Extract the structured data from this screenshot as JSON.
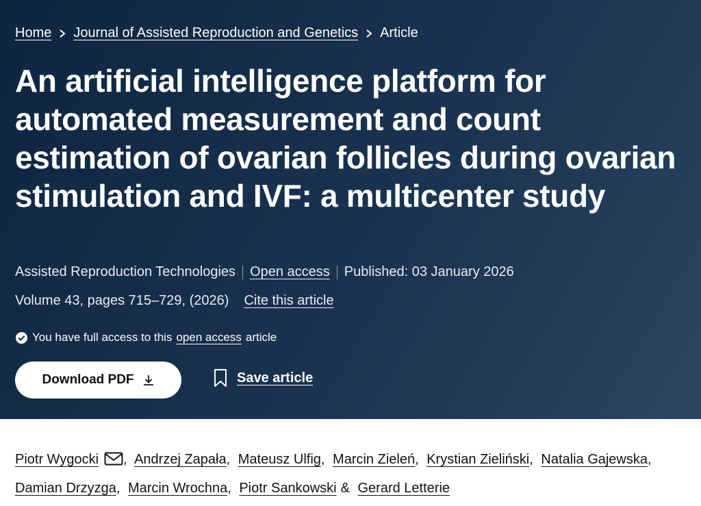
{
  "breadcrumbs": [
    "Home",
    "Journal of Assisted Reproduction and Genetics",
    "Article"
  ],
  "title": "An artificial intelligence platform for automated measurement and count estimation of ovarian follicles during ovarian stimulation and IVF: a multicenter study",
  "meta": {
    "journal": "Assisted Reproduction Technologies",
    "access": "Open access",
    "published": "Published: 03 January 2026"
  },
  "volume": {
    "text": "Volume 43, pages 715–729, (2026)",
    "cite": "Cite this article"
  },
  "access_note": {
    "before": "You have full access to this",
    "link": "open access",
    "after": "article"
  },
  "buttons": {
    "download": "Download PDF",
    "save": "Save article"
  },
  "authors": [
    {
      "name": "Piotr Wygocki",
      "after": ","
    },
    {
      "name": "Andrzej Zapała",
      "after": ","
    },
    {
      "name": "Mateusz Ulfig",
      "after": ","
    },
    {
      "name": "Marcin Zieleń",
      "after": ","
    },
    {
      "name": "Krystian Zieliński",
      "after": ","
    },
    {
      "name": "Natalia Gajewska",
      "after": ","
    },
    {
      "name": "Damian Drzyzga",
      "after": ","
    },
    {
      "name": "Marcin Wrochna",
      "after": ","
    },
    {
      "name": "Piotr Sankowski",
      "after": "&"
    },
    {
      "name": "Gerard Letterie"
    }
  ]
}
